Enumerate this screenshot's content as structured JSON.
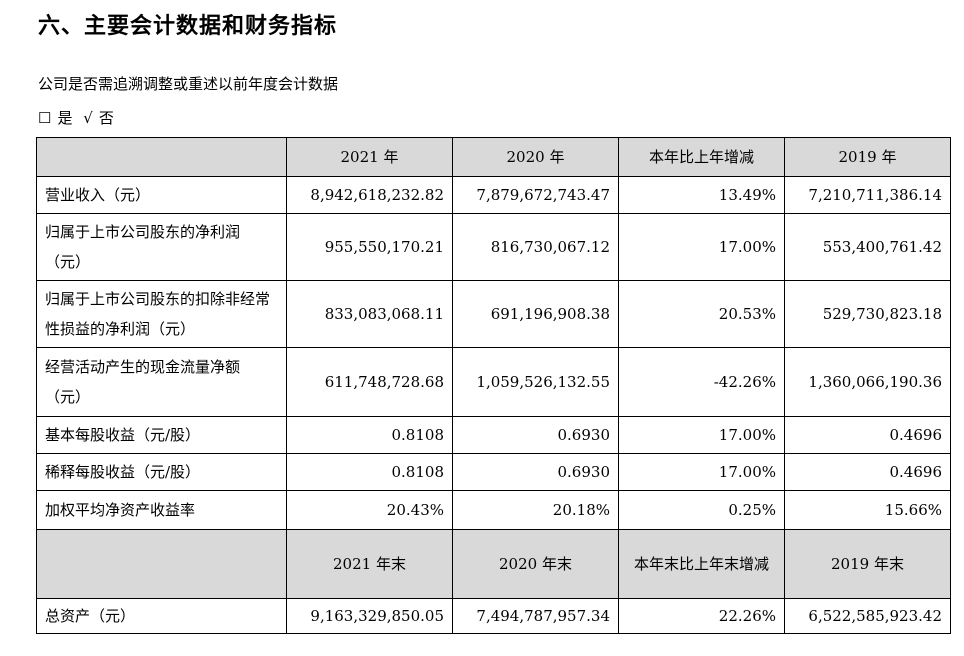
{
  "section_title": "六、主要会计数据和财务指标",
  "question": "公司是否需追溯调整或重述以前年度会计数据",
  "answer": {
    "yes_box": "☐",
    "yes_label": "是",
    "no_check": "√",
    "no_label": "否"
  },
  "table": {
    "header1": [
      "",
      "2021 年",
      "2020 年",
      "本年比上年增减",
      "2019 年"
    ],
    "rows1": [
      {
        "label": "营业收入（元）",
        "values": [
          "8,942,618,232.82",
          "7,879,672,743.47",
          "13.49%",
          "7,210,711,386.14"
        ]
      },
      {
        "label": "归属于上市公司股东的净利润（元）",
        "values": [
          "955,550,170.21",
          "816,730,067.12",
          "17.00%",
          "553,400,761.42"
        ]
      },
      {
        "label": "归属于上市公司股东的扣除非经常性损益的净利润（元）",
        "values": [
          "833,083,068.11",
          "691,196,908.38",
          "20.53%",
          "529,730,823.18"
        ]
      },
      {
        "label": "经营活动产生的现金流量净额（元）",
        "values": [
          "611,748,728.68",
          "1,059,526,132.55",
          "-42.26%",
          "1,360,066,190.36"
        ]
      },
      {
        "label": "基本每股收益（元/股）",
        "values": [
          "0.8108",
          "0.6930",
          "17.00%",
          "0.4696"
        ]
      },
      {
        "label": "稀释每股收益（元/股）",
        "values": [
          "0.8108",
          "0.6930",
          "17.00%",
          "0.4696"
        ]
      },
      {
        "label": "加权平均净资产收益率",
        "values": [
          "20.43%",
          "20.18%",
          "0.25%",
          "15.66%"
        ]
      }
    ],
    "header2": [
      "",
      "2021 年末",
      "2020 年末",
      "本年末比上年末增减",
      "2019 年末"
    ],
    "rows2": [
      {
        "label": "总资产（元）",
        "values": [
          "9,163,329,850.05",
          "7,494,787,957.34",
          "22.26%",
          "6,522,585,923.42"
        ]
      }
    ]
  }
}
